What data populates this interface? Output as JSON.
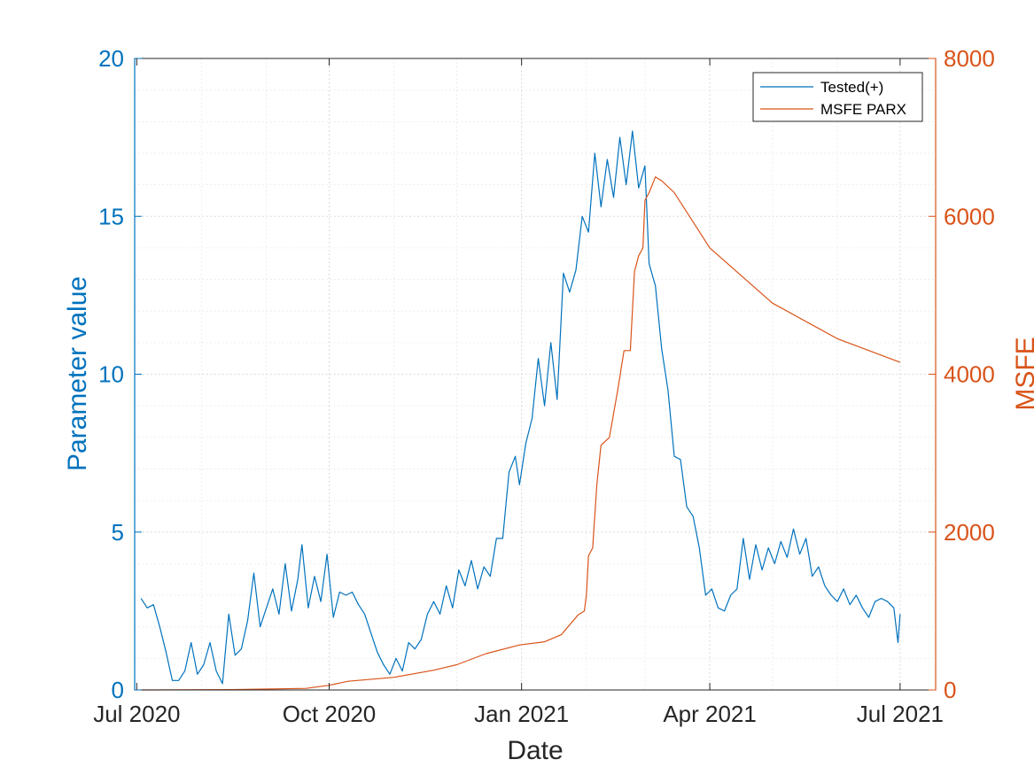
{
  "chart_data": {
    "type": "line",
    "xlabel": "Date",
    "ylabel_left": "Parameter value",
    "ylabel_right": "MSFE",
    "x_ticks": [
      "Jul 2020",
      "Oct 2020",
      "Jan 2021",
      "Apr 2021",
      "Jul 2021"
    ],
    "x_tick_dates": [
      "2020-07-01",
      "2020-10-01",
      "2021-01-01",
      "2021-04-01",
      "2021-07-01"
    ],
    "xlim": [
      "2020-06-30",
      "2021-07-18"
    ],
    "ylim_left": [
      0,
      20
    ],
    "ylim_right": [
      0,
      8000
    ],
    "y_ticks_left": [
      "0",
      "5",
      "10",
      "15",
      "20"
    ],
    "y_ticks_right": [
      "0",
      "2000",
      "4000",
      "6000",
      "8000"
    ],
    "grid": true,
    "minor_grid": true,
    "legend_position": "top-right",
    "colors": {
      "left_axis": "#0072BD",
      "right_axis": "#D95319"
    },
    "series": [
      {
        "name": "Tested(+)",
        "axis": "left",
        "color": "#0072BD",
        "points": [
          [
            "2020-07-03",
            2.9
          ],
          [
            "2020-07-06",
            2.6
          ],
          [
            "2020-07-09",
            2.7
          ],
          [
            "2020-07-12",
            2.0
          ],
          [
            "2020-07-15",
            1.2
          ],
          [
            "2020-07-18",
            0.3
          ],
          [
            "2020-07-21",
            0.3
          ],
          [
            "2020-07-24",
            0.6
          ],
          [
            "2020-07-27",
            1.5
          ],
          [
            "2020-07-30",
            0.5
          ],
          [
            "2020-08-02",
            0.8
          ],
          [
            "2020-08-05",
            1.5
          ],
          [
            "2020-08-08",
            0.6
          ],
          [
            "2020-08-11",
            0.2
          ],
          [
            "2020-08-14",
            2.4
          ],
          [
            "2020-08-17",
            1.1
          ],
          [
            "2020-08-20",
            1.3
          ],
          [
            "2020-08-23",
            2.2
          ],
          [
            "2020-08-26",
            3.7
          ],
          [
            "2020-08-29",
            2.0
          ],
          [
            "2020-09-01",
            2.6
          ],
          [
            "2020-09-04",
            3.2
          ],
          [
            "2020-09-07",
            2.4
          ],
          [
            "2020-09-10",
            4.0
          ],
          [
            "2020-09-13",
            2.5
          ],
          [
            "2020-09-16",
            3.5
          ],
          [
            "2020-09-18",
            4.6
          ],
          [
            "2020-09-21",
            2.6
          ],
          [
            "2020-09-24",
            3.6
          ],
          [
            "2020-09-27",
            2.8
          ],
          [
            "2020-09-30",
            4.3
          ],
          [
            "2020-10-03",
            2.3
          ],
          [
            "2020-10-06",
            3.1
          ],
          [
            "2020-10-09",
            3.0
          ],
          [
            "2020-10-12",
            3.1
          ],
          [
            "2020-10-15",
            2.7
          ],
          [
            "2020-10-18",
            2.4
          ],
          [
            "2020-10-21",
            1.8
          ],
          [
            "2020-10-24",
            1.2
          ],
          [
            "2020-10-27",
            0.8
          ],
          [
            "2020-10-30",
            0.5
          ],
          [
            "2020-11-02",
            1.0
          ],
          [
            "2020-11-05",
            0.6
          ],
          [
            "2020-11-08",
            1.5
          ],
          [
            "2020-11-11",
            1.3
          ],
          [
            "2020-11-14",
            1.6
          ],
          [
            "2020-11-17",
            2.4
          ],
          [
            "2020-11-20",
            2.8
          ],
          [
            "2020-11-23",
            2.4
          ],
          [
            "2020-11-26",
            3.3
          ],
          [
            "2020-11-29",
            2.6
          ],
          [
            "2020-12-02",
            3.8
          ],
          [
            "2020-12-05",
            3.3
          ],
          [
            "2020-12-08",
            4.1
          ],
          [
            "2020-12-11",
            3.2
          ],
          [
            "2020-12-14",
            3.9
          ],
          [
            "2020-12-17",
            3.6
          ],
          [
            "2020-12-20",
            4.8
          ],
          [
            "2020-12-23",
            4.8
          ],
          [
            "2020-12-26",
            6.9
          ],
          [
            "2020-12-29",
            7.4
          ],
          [
            "2020-12-31",
            6.5
          ],
          [
            "2021-01-03",
            7.8
          ],
          [
            "2021-01-06",
            8.6
          ],
          [
            "2021-01-09",
            10.5
          ],
          [
            "2021-01-12",
            9.0
          ],
          [
            "2021-01-15",
            11.0
          ],
          [
            "2021-01-18",
            9.2
          ],
          [
            "2021-01-21",
            13.2
          ],
          [
            "2021-01-24",
            12.6
          ],
          [
            "2021-01-27",
            13.3
          ],
          [
            "2021-01-30",
            15.0
          ],
          [
            "2021-02-02",
            14.5
          ],
          [
            "2021-02-05",
            17.0
          ],
          [
            "2021-02-08",
            15.3
          ],
          [
            "2021-02-11",
            16.8
          ],
          [
            "2021-02-14",
            15.6
          ],
          [
            "2021-02-17",
            17.5
          ],
          [
            "2021-02-20",
            16.0
          ],
          [
            "2021-02-23",
            17.7
          ],
          [
            "2021-02-26",
            15.9
          ],
          [
            "2021-03-01",
            16.6
          ],
          [
            "2021-03-03",
            13.5
          ],
          [
            "2021-03-06",
            12.8
          ],
          [
            "2021-03-09",
            10.8
          ],
          [
            "2021-03-12",
            9.5
          ],
          [
            "2021-03-15",
            7.4
          ],
          [
            "2021-03-18",
            7.3
          ],
          [
            "2021-03-21",
            5.8
          ],
          [
            "2021-03-24",
            5.5
          ],
          [
            "2021-03-27",
            4.5
          ],
          [
            "2021-03-30",
            3.0
          ],
          [
            "2021-04-02",
            3.2
          ],
          [
            "2021-04-05",
            2.6
          ],
          [
            "2021-04-08",
            2.5
          ],
          [
            "2021-04-11",
            3.0
          ],
          [
            "2021-04-14",
            3.2
          ],
          [
            "2021-04-17",
            4.8
          ],
          [
            "2021-04-20",
            3.5
          ],
          [
            "2021-04-23",
            4.6
          ],
          [
            "2021-04-26",
            3.8
          ],
          [
            "2021-04-29",
            4.5
          ],
          [
            "2021-05-02",
            4.0
          ],
          [
            "2021-05-05",
            4.7
          ],
          [
            "2021-05-08",
            4.2
          ],
          [
            "2021-05-11",
            5.1
          ],
          [
            "2021-05-14",
            4.3
          ],
          [
            "2021-05-17",
            4.8
          ],
          [
            "2021-05-20",
            3.6
          ],
          [
            "2021-05-23",
            3.9
          ],
          [
            "2021-05-26",
            3.3
          ],
          [
            "2021-05-29",
            3.0
          ],
          [
            "2021-06-01",
            2.8
          ],
          [
            "2021-06-04",
            3.2
          ],
          [
            "2021-06-07",
            2.7
          ],
          [
            "2021-06-10",
            3.0
          ],
          [
            "2021-06-13",
            2.6
          ],
          [
            "2021-06-16",
            2.3
          ],
          [
            "2021-06-19",
            2.8
          ],
          [
            "2021-06-22",
            2.9
          ],
          [
            "2021-06-25",
            2.8
          ],
          [
            "2021-06-28",
            2.6
          ],
          [
            "2021-06-30",
            1.5
          ],
          [
            "2021-07-01",
            2.4
          ]
        ]
      },
      {
        "name": "MSFE PARX",
        "axis": "right",
        "color": "#D95319",
        "points": [
          [
            "2020-07-03",
            0
          ],
          [
            "2020-08-15",
            5
          ],
          [
            "2020-09-20",
            20
          ],
          [
            "2020-10-01",
            60
          ],
          [
            "2020-10-10",
            110
          ],
          [
            "2020-11-01",
            160
          ],
          [
            "2020-11-20",
            250
          ],
          [
            "2020-12-01",
            320
          ],
          [
            "2020-12-15",
            460
          ],
          [
            "2020-12-31",
            570
          ],
          [
            "2021-01-12",
            610
          ],
          [
            "2021-01-20",
            700
          ],
          [
            "2021-01-28",
            950
          ],
          [
            "2021-01-31",
            1000
          ],
          [
            "2021-02-01",
            1200
          ],
          [
            "2021-02-02",
            1700
          ],
          [
            "2021-02-04",
            1800
          ],
          [
            "2021-02-06",
            2600
          ],
          [
            "2021-02-08",
            3100
          ],
          [
            "2021-02-12",
            3200
          ],
          [
            "2021-02-16",
            3800
          ],
          [
            "2021-02-19",
            4300
          ],
          [
            "2021-02-22",
            4300
          ],
          [
            "2021-02-24",
            5300
          ],
          [
            "2021-02-26",
            5500
          ],
          [
            "2021-02-28",
            5600
          ],
          [
            "2021-03-01",
            6200
          ],
          [
            "2021-03-03",
            6300
          ],
          [
            "2021-03-06",
            6500
          ],
          [
            "2021-03-09",
            6450
          ],
          [
            "2021-03-15",
            6300
          ],
          [
            "2021-04-01",
            5600
          ],
          [
            "2021-05-01",
            4900
          ],
          [
            "2021-06-01",
            4450
          ],
          [
            "2021-07-01",
            4150
          ]
        ]
      }
    ]
  }
}
